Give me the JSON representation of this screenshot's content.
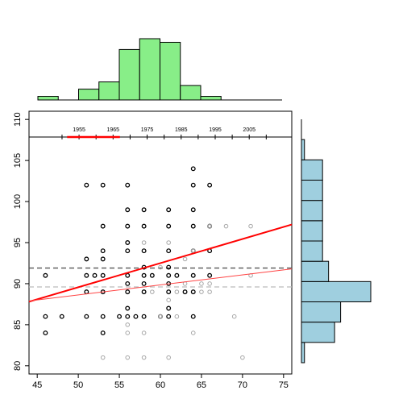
{
  "chart_data": {
    "type": "scatter",
    "title": "",
    "xlabel": "",
    "ylabel": "",
    "xlim": [
      44,
      76
    ],
    "ylim": [
      79,
      111
    ],
    "x_ticks": [
      45,
      50,
      55,
      60,
      65,
      70,
      75
    ],
    "y_ticks": [
      80,
      85,
      90,
      95,
      100,
      105,
      110
    ],
    "secondary_x_axis": {
      "years": [
        "1955",
        "1965",
        "1975",
        "1985",
        "1995",
        "2005"
      ],
      "years_ticks": [
        1950,
        1955,
        1960,
        1965,
        1970,
        1975,
        1980,
        1985,
        1990,
        1995,
        2000,
        2005,
        2010
      ],
      "highlight_range": [
        1951.5,
        1967
      ]
    },
    "series": [
      {
        "points": [
          [
            46,
            91
          ],
          [
            46,
            86
          ],
          [
            46,
            84
          ],
          [
            48,
            86
          ],
          [
            51,
            102
          ],
          [
            51,
            93
          ],
          [
            51,
            91
          ],
          [
            51,
            89
          ],
          [
            51,
            86
          ],
          [
            52,
            91
          ],
          [
            53,
            102
          ],
          [
            53,
            97
          ],
          [
            53,
            94
          ],
          [
            53,
            93
          ],
          [
            53,
            91
          ],
          [
            53,
            89
          ],
          [
            53,
            86
          ],
          [
            53,
            84
          ],
          [
            55,
            86
          ],
          [
            56,
            102
          ],
          [
            56,
            99
          ],
          [
            56,
            97
          ],
          [
            56,
            95
          ],
          [
            56,
            94
          ],
          [
            56,
            91
          ],
          [
            56,
            90
          ],
          [
            56,
            89
          ],
          [
            56,
            87
          ],
          [
            56,
            86
          ],
          [
            57,
            86
          ],
          [
            58,
            99
          ],
          [
            58,
            97
          ],
          [
            58,
            94
          ],
          [
            58,
            92
          ],
          [
            58,
            91
          ],
          [
            58,
            90
          ],
          [
            58,
            89
          ],
          [
            58,
            86
          ],
          [
            59,
            91
          ],
          [
            60,
            86
          ],
          [
            61,
            99
          ],
          [
            61,
            97
          ],
          [
            61,
            94
          ],
          [
            61,
            92
          ],
          [
            61,
            91
          ],
          [
            61,
            90
          ],
          [
            61,
            89
          ],
          [
            61,
            87
          ],
          [
            61,
            86
          ],
          [
            62,
            91
          ],
          [
            63,
            89
          ],
          [
            64,
            104
          ],
          [
            64,
            102
          ],
          [
            64,
            99
          ],
          [
            64,
            97
          ],
          [
            64,
            94
          ],
          [
            64,
            91
          ],
          [
            64,
            89
          ],
          [
            64,
            86
          ],
          [
            66,
            102
          ],
          [
            66,
            97
          ],
          [
            66,
            94
          ],
          [
            66,
            91
          ]
        ]
      },
      {
        "points": [
          [
            56,
            85
          ],
          [
            56,
            84
          ],
          [
            56,
            81
          ],
          [
            58,
            95
          ],
          [
            58,
            84
          ],
          [
            58,
            81
          ],
          [
            59,
            89
          ],
          [
            60,
            92
          ],
          [
            60,
            86
          ],
          [
            61,
            95
          ],
          [
            61,
            88
          ],
          [
            61,
            81
          ],
          [
            62,
            89
          ],
          [
            62,
            86
          ],
          [
            63,
            93
          ],
          [
            63,
            90
          ],
          [
            64,
            84
          ],
          [
            64,
            94
          ],
          [
            65,
            90
          ],
          [
            65,
            89
          ],
          [
            66,
            97
          ],
          [
            66,
            90
          ],
          [
            66,
            89
          ],
          [
            68,
            97
          ],
          [
            69,
            86
          ],
          [
            70,
            81
          ],
          [
            71,
            97
          ],
          [
            71,
            91
          ],
          [
            53,
            81
          ]
        ]
      }
    ],
    "reference_lines": [
      {
        "y": 91.9,
        "color": "#555555",
        "style": "dashed"
      },
      {
        "y": 89.6,
        "color": "#bbbbbb",
        "style": "dashed"
      }
    ],
    "regression_lines": [
      {
        "x": [
          44,
          76
        ],
        "y": [
          87.8,
          97.2
        ],
        "color": "#ff0000",
        "width": "thick"
      },
      {
        "x": [
          44,
          76
        ],
        "y": [
          87.9,
          91.8
        ],
        "color": "#ff4444",
        "width": "thin"
      }
    ],
    "top_histogram": {
      "bin_edges": [
        44,
        46,
        48,
        50,
        52,
        54,
        56,
        58,
        60,
        62,
        64,
        66,
        68
      ],
      "heights": [
        1,
        0,
        3,
        5,
        14,
        17,
        16,
        4,
        1,
        0,
        0,
        0
      ],
      "color": "#88ee88"
    },
    "right_histogram": {
      "bin_edges": [
        84,
        86,
        88,
        90,
        92,
        94,
        96,
        98,
        100,
        102,
        104,
        106,
        108
      ],
      "widths": [
        1,
        11,
        13,
        23,
        9,
        7,
        7,
        7,
        7,
        7,
        1,
        0
      ],
      "color": "#9fcfdf"
    }
  }
}
